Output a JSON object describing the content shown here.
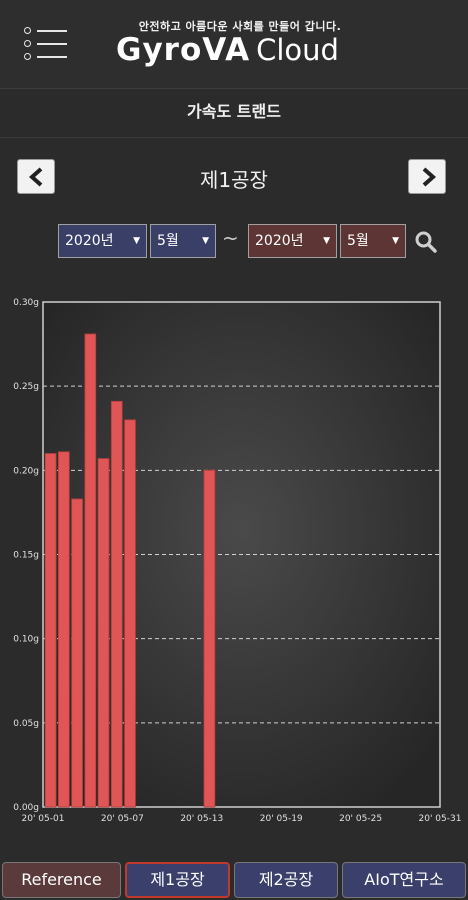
{
  "header": {
    "tagline": "안전하고 아름다운 사회를 만들어 갑니다.",
    "logo_brand": "GyroVA",
    "logo_cloud": "Cloud"
  },
  "page": {
    "subtitle": "가속도 트랜드"
  },
  "nav": {
    "factory_title": "제1공장"
  },
  "filters": {
    "start_year": "2020년",
    "start_month": "5월",
    "separator": "~",
    "end_year": "2020년",
    "end_month": "5월"
  },
  "tabs": [
    "Reference",
    "제1공장",
    "제2공장",
    "AIoT연구소"
  ],
  "colors": {
    "bar": "#e05555",
    "active_tab_border": "#c0392b",
    "blue_select": "#3a3f68",
    "red_select": "#5e3535"
  },
  "chart_data": {
    "type": "bar",
    "x": [
      "2020-05-01",
      "2020-05-02",
      "2020-05-03",
      "2020-05-04",
      "2020-05-05",
      "2020-05-06",
      "2020-05-07",
      "2020-05-13"
    ],
    "values": [
      0.21,
      0.211,
      0.183,
      0.281,
      0.207,
      0.241,
      0.23,
      0.2
    ],
    "ylim": [
      0,
      0.3
    ],
    "y_ticks": [
      "0.00g",
      "0.05g",
      "0.10g",
      "0.15g",
      "0.20g",
      "0.25g",
      "0.30g"
    ],
    "x_ticks": [
      "20' 05-01",
      "20' 05-07",
      "20' 05-13",
      "20' 05-19",
      "20' 05-25",
      "20' 05-31"
    ],
    "grid": "horizontal dashed"
  }
}
